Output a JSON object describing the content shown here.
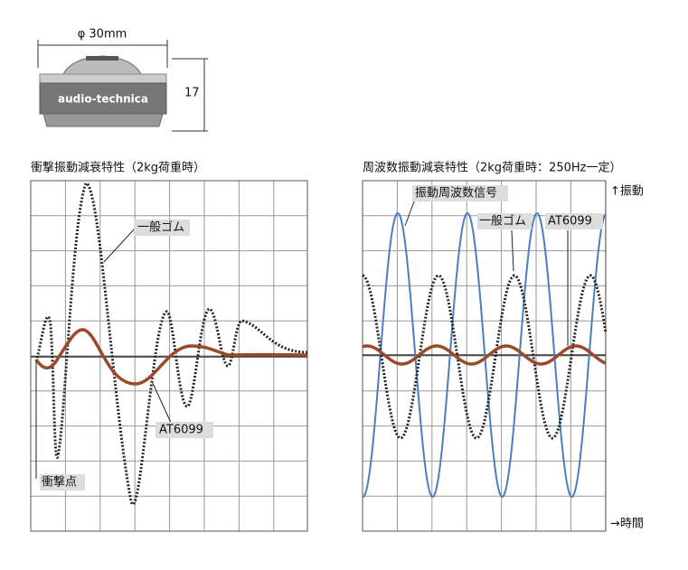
{
  "product": {
    "diameter": "φ 30mm",
    "height": "17",
    "brand": "audio-technica"
  },
  "left_chart": {
    "title": "衝撃振動減衰特性（2kg荷重時）",
    "labels": [
      "一般ゴム",
      "AT6099",
      "衝撃点"
    ]
  },
  "right_chart": {
    "title": "周波数振動減衰特性（2kg荷重時：250Hz一定）",
    "y_label": "↑振動",
    "x_label": "→時間",
    "labels": [
      "振動周波数信号",
      "一般ゴム",
      "AT6099"
    ]
  }
}
